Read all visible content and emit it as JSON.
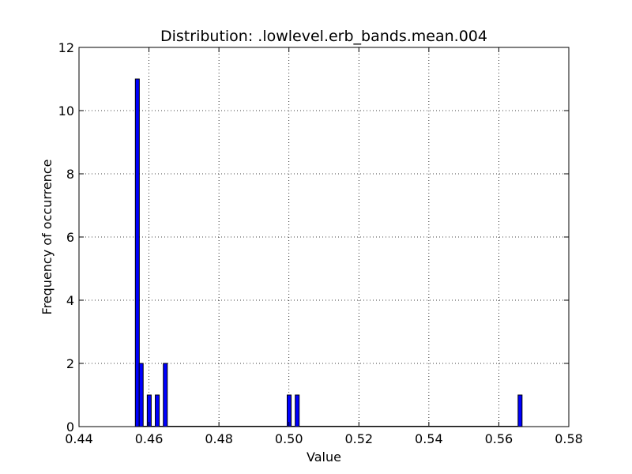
{
  "chart_data": {
    "type": "bar",
    "title": "Distribution: .lowlevel.erb_bands.mean.004",
    "xlabel": "Value",
    "ylabel": "Frequency of occurrence",
    "xlim": [
      0.44,
      0.58
    ],
    "ylim": [
      0,
      12
    ],
    "xticks": [
      "0.44",
      "0.46",
      "0.48",
      "0.50",
      "0.52",
      "0.54",
      "0.56",
      "0.58"
    ],
    "yticks": [
      "0",
      "2",
      "4",
      "6",
      "8",
      "10",
      "12"
    ],
    "grid": true,
    "bar_color": "#0000ff",
    "bins": [
      {
        "x": 0.4561,
        "count": 11
      },
      {
        "x": 0.4572,
        "count": 2
      },
      {
        "x": 0.4595,
        "count": 1
      },
      {
        "x": 0.4618,
        "count": 1
      },
      {
        "x": 0.4641,
        "count": 2
      },
      {
        "x": 0.4995,
        "count": 1
      },
      {
        "x": 0.5018,
        "count": 1
      },
      {
        "x": 0.5655,
        "count": 1
      }
    ],
    "bin_width": 0.00114
  }
}
